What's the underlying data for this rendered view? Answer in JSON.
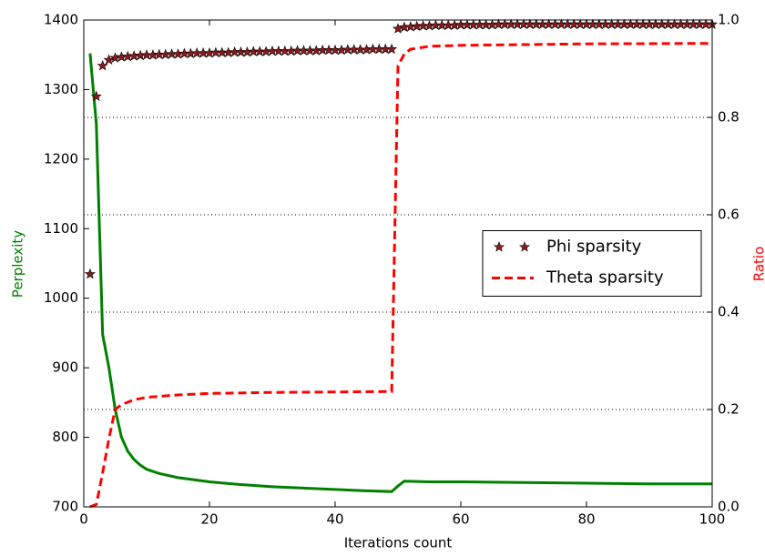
{
  "chart_data": {
    "type": "line",
    "xlabel": "Iterations count",
    "ylabel": "Perplexity",
    "y2label": "Ratio",
    "xlim": [
      0,
      100
    ],
    "xticks": [
      0,
      20,
      40,
      60,
      80,
      100
    ],
    "ylim": [
      700,
      1400
    ],
    "yticks": [
      700,
      800,
      900,
      1000,
      1100,
      1200,
      1300,
      1400
    ],
    "y2lim": [
      0,
      1
    ],
    "y2ticks": [
      {
        "value": 0,
        "label": "0.0"
      },
      0.2,
      0.4,
      0.6,
      0.8,
      {
        "value": 1,
        "label": "1.0"
      }
    ],
    "grid": "y2",
    "legend": "center right",
    "series": [
      {
        "color": "#008000",
        "linestyle": "solid",
        "axis": "y",
        "x": [
          1,
          2,
          3,
          4,
          5,
          6,
          7,
          8,
          9,
          10,
          12,
          15,
          20,
          25,
          30,
          35,
          40,
          45,
          49,
          50,
          51,
          55,
          60,
          70,
          80,
          90,
          100
        ],
        "values": [
          1352,
          1250,
          948,
          900,
          840,
          800,
          780,
          768,
          760,
          754,
          748,
          742,
          736,
          732,
          729,
          727,
          725,
          723,
          722,
          730,
          737,
          736,
          736,
          735,
          734,
          733,
          733
        ]
      },
      {
        "name": "Phi sparsity",
        "color": "#8b1a1a",
        "marker": "star",
        "linestyle": "none",
        "axis": "y2",
        "x": [
          1,
          2,
          3,
          4,
          5,
          6,
          7,
          8,
          9,
          10,
          11,
          12,
          13,
          14,
          15,
          16,
          17,
          18,
          19,
          20,
          21,
          22,
          23,
          24,
          25,
          26,
          27,
          28,
          29,
          30,
          31,
          32,
          33,
          34,
          35,
          36,
          37,
          38,
          39,
          40,
          41,
          42,
          43,
          44,
          45,
          46,
          47,
          48,
          49,
          50,
          51,
          52,
          53,
          54,
          55,
          56,
          57,
          58,
          59,
          60,
          61,
          62,
          63,
          64,
          65,
          66,
          67,
          68,
          69,
          70,
          71,
          72,
          73,
          74,
          75,
          76,
          77,
          78,
          79,
          80,
          81,
          82,
          83,
          84,
          85,
          86,
          87,
          88,
          89,
          90,
          91,
          92,
          93,
          94,
          95,
          96,
          97,
          98,
          99,
          100
        ],
        "values": [
          0.478,
          0.843,
          0.906,
          0.918,
          0.922,
          0.924,
          0.925,
          0.926,
          0.927,
          0.928,
          0.928,
          0.929,
          0.929,
          0.93,
          0.93,
          0.931,
          0.931,
          0.932,
          0.932,
          0.932,
          0.933,
          0.933,
          0.933,
          0.934,
          0.934,
          0.934,
          0.935,
          0.935,
          0.935,
          0.936,
          0.936,
          0.936,
          0.936,
          0.937,
          0.937,
          0.937,
          0.937,
          0.938,
          0.938,
          0.938,
          0.938,
          0.939,
          0.939,
          0.939,
          0.939,
          0.94,
          0.94,
          0.94,
          0.94,
          0.982,
          0.985,
          0.986,
          0.987,
          0.988,
          0.988,
          0.989,
          0.989,
          0.989,
          0.989,
          0.99,
          0.99,
          0.99,
          0.99,
          0.99,
          0.99,
          0.991,
          0.991,
          0.991,
          0.991,
          0.991,
          0.991,
          0.991,
          0.991,
          0.991,
          0.991,
          0.991,
          0.991,
          0.991,
          0.991,
          0.991,
          0.991,
          0.991,
          0.991,
          0.991,
          0.991,
          0.991,
          0.991,
          0.991,
          0.991,
          0.991,
          0.991,
          0.991,
          0.991,
          0.991,
          0.991,
          0.991,
          0.991,
          0.991,
          0.991,
          0.991
        ]
      },
      {
        "name": "Theta sparsity",
        "color": "#ff0000",
        "linestyle": "dashed",
        "axis": "y2",
        "x": [
          1,
          2,
          3,
          4,
          5,
          6,
          7,
          8,
          10,
          15,
          20,
          30,
          40,
          49,
          50,
          51,
          52,
          55,
          60,
          80,
          100
        ],
        "values": [
          0.0,
          0.005,
          0.07,
          0.14,
          0.2,
          0.21,
          0.215,
          0.22,
          0.225,
          0.23,
          0.233,
          0.235,
          0.236,
          0.237,
          0.906,
          0.93,
          0.94,
          0.946,
          0.948,
          0.951,
          0.952
        ]
      }
    ]
  }
}
